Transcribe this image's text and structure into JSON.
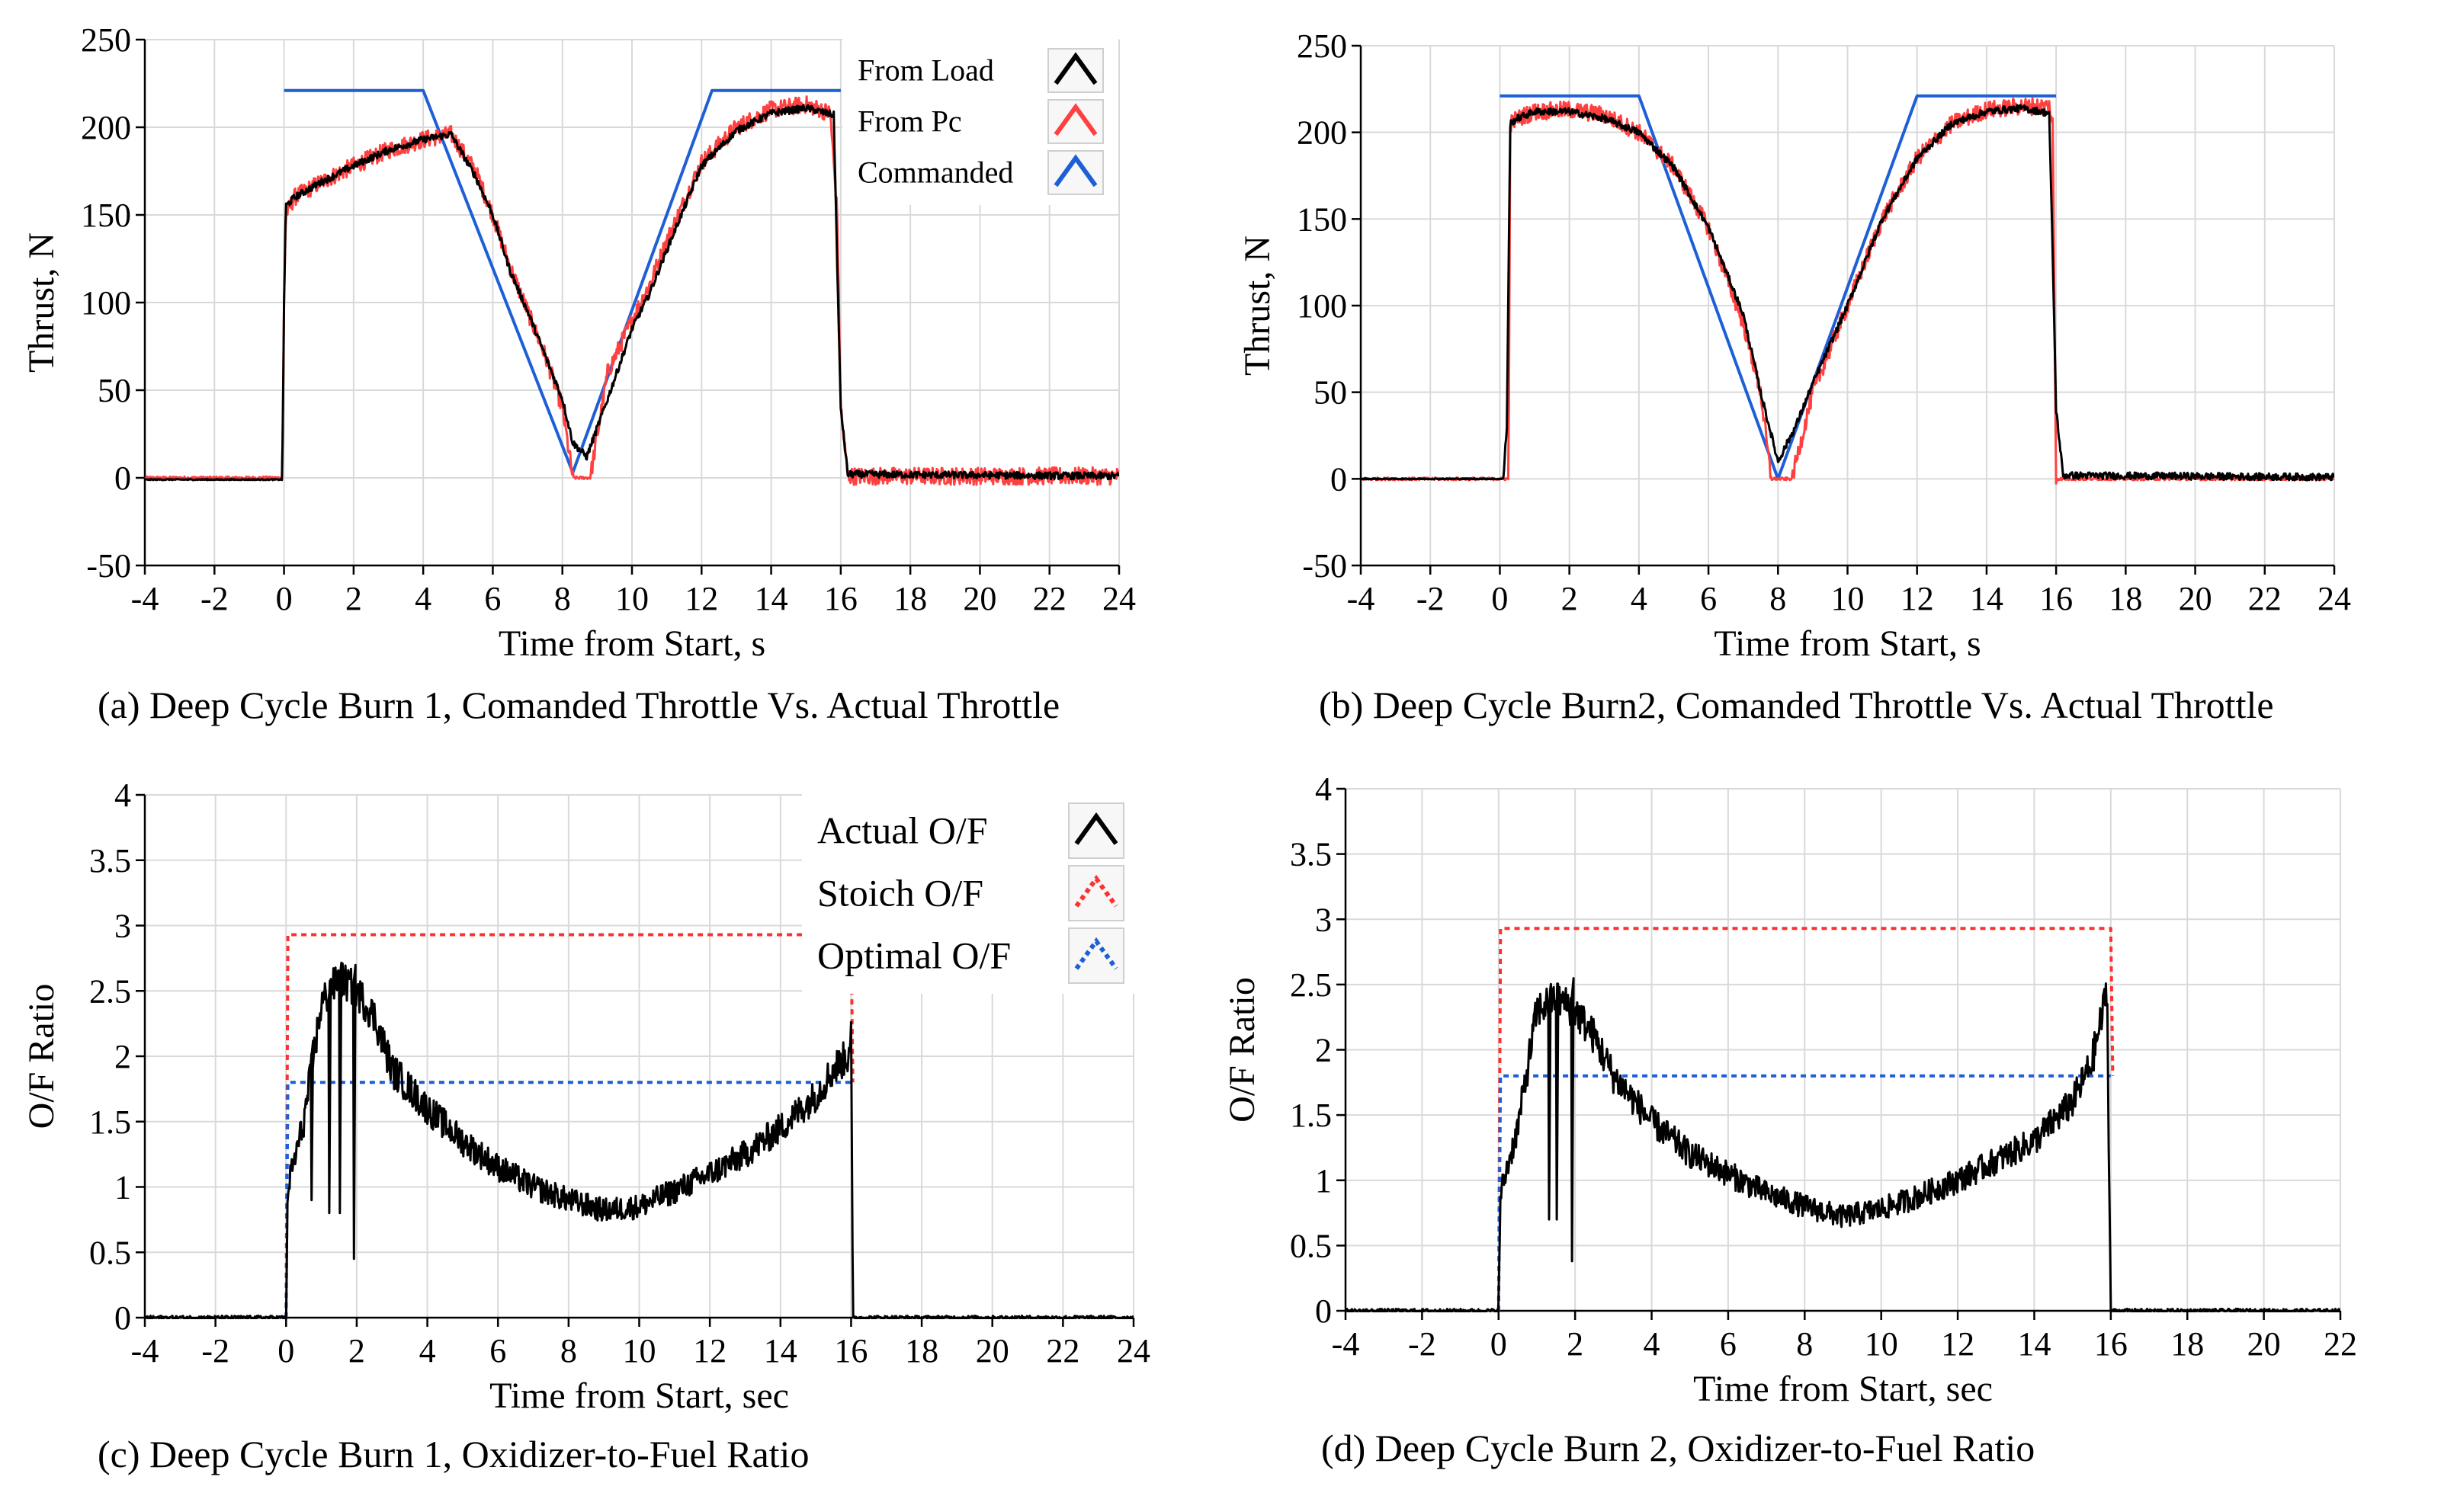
{
  "chart_data": [
    {
      "id": "a",
      "type": "line",
      "caption": "(a) Deep Cycle Burn 1, Comanded Throttle Vs. Actual Throttle",
      "xlabel": "Time from  Start, s",
      "ylabel": "Thrust,  N",
      "xlim": [
        -4,
        24
      ],
      "ylim": [
        -50,
        250
      ],
      "xticks": [
        -4,
        -2,
        0,
        2,
        4,
        6,
        8,
        10,
        12,
        14,
        16,
        18,
        20,
        22,
        24
      ],
      "yticks": [
        -50,
        0,
        50,
        100,
        150,
        200,
        250
      ],
      "grid": true,
      "legend": "top-right",
      "series": [
        {
          "name": "Commanded",
          "color": "#1f5fd6",
          "style": "solid",
          "x": [
            0,
            4,
            8.3,
            12.3,
            16
          ],
          "y": [
            221,
            221,
            3,
            221,
            221
          ]
        },
        {
          "name": "From Pc",
          "color": "#ff4040",
          "style": "solid",
          "noise": 5,
          "x": [
            -4,
            -0.05,
            0,
            0.05,
            0.3,
            1,
            2,
            3,
            4,
            4.8,
            5.5,
            6,
            6.5,
            7,
            7.5,
            8,
            8.3,
            8.8,
            9.3,
            10,
            10.5,
            11,
            12,
            13,
            14,
            15,
            15.7,
            15.9,
            16,
            16.2,
            24
          ],
          "y": [
            0,
            0,
            100,
            150,
            160,
            168,
            178,
            187,
            193,
            196,
            175,
            150,
            120,
            95,
            70,
            40,
            0,
            0,
            60,
            90,
            110,
            135,
            180,
            200,
            210,
            213,
            208,
            150,
            40,
            1,
            1
          ]
        },
        {
          "name": "From Load",
          "color": "#000000",
          "style": "solid",
          "noise": 2,
          "x": [
            -4,
            -0.05,
            0,
            0.05,
            0.3,
            1,
            2,
            3,
            4,
            4.8,
            5.5,
            6,
            6.5,
            7,
            7.5,
            8,
            8.3,
            8.7,
            9.3,
            10,
            10.5,
            11,
            12,
            13,
            14,
            15,
            15.8,
            15.9,
            16,
            16.2,
            24
          ],
          "y": [
            -1,
            -1,
            100,
            155,
            160,
            168,
            178,
            187,
            193,
            196,
            172,
            150,
            118,
            95,
            70,
            45,
            20,
            12,
            45,
            85,
            105,
            130,
            178,
            198,
            208,
            211,
            207,
            120,
            40,
            2,
            1
          ]
        }
      ],
      "legend_entries": [
        "From Load",
        "From Pc",
        "Commanded"
      ]
    },
    {
      "id": "b",
      "type": "line",
      "caption": "(b) Deep Cycle Burn2, Comanded Throttle Vs. Actual Throttle",
      "xlabel": "Time from  Start, s",
      "ylabel": "Thrust,  N",
      "xlim": [
        -4,
        24
      ],
      "ylim": [
        -50,
        250
      ],
      "xticks": [
        -4,
        -2,
        0,
        2,
        4,
        6,
        8,
        10,
        12,
        14,
        16,
        18,
        20,
        22,
        24
      ],
      "yticks": [
        -50,
        0,
        50,
        100,
        150,
        200,
        250
      ],
      "grid": true,
      "legend": "none",
      "series": [
        {
          "name": "Commanded",
          "color": "#1f5fd6",
          "style": "solid",
          "x": [
            0,
            4,
            8,
            12,
            16
          ],
          "y": [
            221,
            221,
            0,
            221,
            221
          ]
        },
        {
          "name": "From Pc",
          "color": "#ff4040",
          "style": "solid",
          "noise": 5,
          "x": [
            -4,
            0.25,
            0.3,
            0.5,
            1,
            2,
            3,
            4,
            5,
            6,
            7,
            7.5,
            7.8,
            8.4,
            9,
            10,
            11,
            12,
            13,
            14,
            15,
            15.8,
            15.9,
            16,
            24
          ],
          "y": [
            0,
            0,
            205,
            208,
            212,
            213,
            210,
            200,
            180,
            145,
            90,
            50,
            0,
            0,
            50,
            100,
            150,
            185,
            205,
            213,
            215,
            215,
            205,
            0,
            0
          ]
        },
        {
          "name": "From Load",
          "color": "#000000",
          "style": "solid",
          "noise": 2,
          "x": [
            -4,
            0.1,
            0.2,
            0.3,
            0.5,
            1,
            2,
            3,
            4,
            5,
            6,
            7,
            7.5,
            8,
            8.5,
            9,
            10,
            11,
            12,
            13,
            14,
            15,
            15.8,
            15.9,
            16,
            16.2,
            24
          ],
          "y": [
            0,
            0,
            30,
            205,
            208,
            212,
            212,
            208,
            200,
            180,
            145,
            95,
            50,
            10,
            30,
            55,
            100,
            150,
            185,
            205,
            212,
            214,
            211,
            130,
            40,
            2,
            1
          ]
        }
      ]
    },
    {
      "id": "c",
      "type": "line",
      "caption": "(c) Deep Cycle Burn 1, Oxidizer-to-Fuel Ratio",
      "xlabel": "Time from  Start, sec",
      "ylabel": "O/F Ratio",
      "xlim": [
        -4,
        24
      ],
      "ylim": [
        0,
        4
      ],
      "xticks": [
        -4,
        -2,
        0,
        2,
        4,
        6,
        8,
        10,
        12,
        14,
        16,
        18,
        20,
        22,
        24
      ],
      "yticks": [
        0,
        0.5,
        1,
        1.5,
        2,
        2.5,
        3,
        3.5,
        4
      ],
      "grid": true,
      "legend": "top-right",
      "series": [
        {
          "name": "Stoich O/F",
          "color": "#ff3030",
          "style": "dotted",
          "x": [
            0,
            0.05,
            16,
            16.05
          ],
          "y": [
            0,
            2.93,
            2.93,
            1.8
          ]
        },
        {
          "name": "Optimal O/F",
          "color": "#1f5fd6",
          "style": "dotted",
          "x": [
            0,
            0.05,
            16
          ],
          "y": [
            0,
            1.8,
            1.8
          ]
        },
        {
          "name": "Actual O/F",
          "color": "#000000",
          "style": "solid",
          "noise": 0.1,
          "x": [
            -4,
            0,
            0.05,
            0.5,
            1,
            1.5,
            2,
            2.5,
            3,
            4,
            5,
            6,
            7,
            8,
            9,
            10,
            11,
            12,
            13,
            14,
            15,
            15.5,
            15.9,
            16,
            16.05,
            24
          ],
          "y": [
            0,
            0,
            1.0,
            1.5,
            2.4,
            2.6,
            2.5,
            2.3,
            1.9,
            1.6,
            1.35,
            1.15,
            1.0,
            0.9,
            0.82,
            0.85,
            0.97,
            1.1,
            1.25,
            1.45,
            1.7,
            1.9,
            2.0,
            2.2,
            0,
            0
          ],
          "spikes": [
            [
              0.7,
              0.9
            ],
            [
              1.2,
              0.8
            ],
            [
              1.5,
              0.8
            ],
            [
              1.9,
              0.45
            ]
          ]
        }
      ],
      "legend_entries": [
        "Actual O/F",
        "Stoich O/F",
        "Optimal O/F"
      ]
    },
    {
      "id": "d",
      "type": "line",
      "caption": "(d) Deep Cycle Burn 2, Oxidizer-to-Fuel Ratio",
      "xlabel": "Time from  Start, sec",
      "ylabel": "O/F Ratio",
      "xlim": [
        -4,
        22
      ],
      "ylim": [
        0,
        4
      ],
      "xticks": [
        -4,
        -2,
        0,
        2,
        4,
        6,
        8,
        10,
        12,
        14,
        16,
        18,
        20,
        22
      ],
      "yticks": [
        0,
        0.5,
        1,
        1.5,
        2,
        2.5,
        3,
        3.5,
        4
      ],
      "grid": true,
      "legend": "none",
      "series": [
        {
          "name": "Stoich O/F",
          "color": "#ff3030",
          "style": "dotted",
          "x": [
            0,
            0.05,
            16,
            16.05
          ],
          "y": [
            0,
            2.93,
            2.93,
            1.8
          ]
        },
        {
          "name": "Optimal O/F",
          "color": "#1f5fd6",
          "style": "dotted",
          "x": [
            0,
            0.05,
            16
          ],
          "y": [
            0,
            1.8,
            1.8
          ]
        },
        {
          "name": "Actual O/F",
          "color": "#000000",
          "style": "solid",
          "noise": 0.1,
          "x": [
            -4,
            0,
            0.05,
            0.5,
            1,
            1.5,
            2,
            2.5,
            3,
            4,
            5,
            6,
            7,
            8,
            9,
            10,
            11,
            12,
            13,
            14,
            15,
            15.5,
            15.8,
            15.9,
            16,
            22
          ],
          "y": [
            0,
            0,
            0.9,
            1.4,
            2.3,
            2.4,
            2.3,
            2.1,
            1.8,
            1.45,
            1.2,
            1.05,
            0.9,
            0.8,
            0.72,
            0.78,
            0.88,
            1.0,
            1.15,
            1.3,
            1.6,
            1.9,
            2.3,
            2.5,
            0,
            0
          ],
          "spikes": [
            [
              1.3,
              0.7
            ],
            [
              1.5,
              0.7
            ],
            [
              1.9,
              0.38
            ]
          ]
        }
      ]
    }
  ]
}
